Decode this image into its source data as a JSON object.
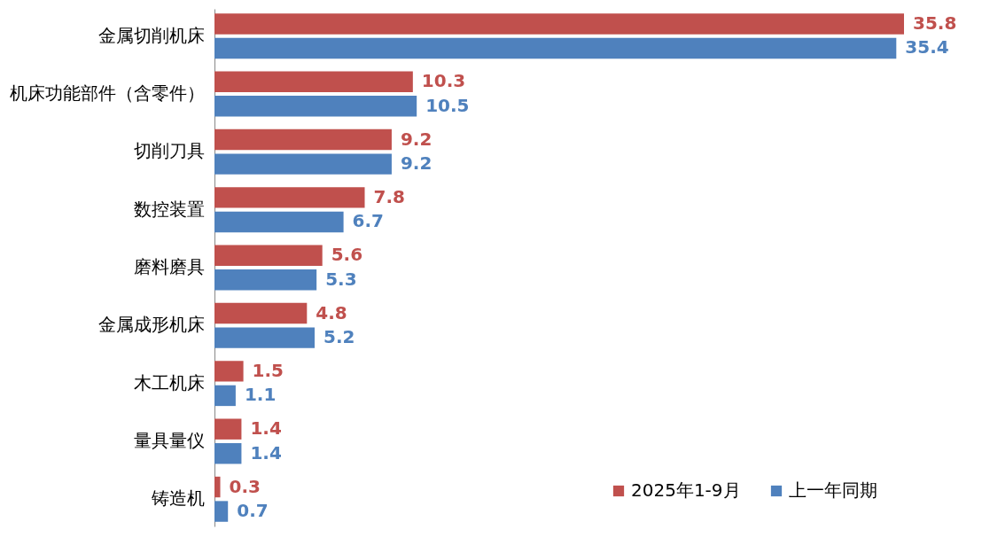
{
  "chart_data": {
    "type": "bar",
    "orientation": "horizontal",
    "categories": [
      "金属切削机床",
      "机床功能部件（含零件）",
      "切削刀具",
      "数控装置",
      "磨料磨具",
      "金属成形机床",
      "木工机床",
      "量具量仪",
      "铸造机"
    ],
    "series": [
      {
        "name": "2025年1-9月",
        "color": "#c0504d",
        "values": [
          35.8,
          10.3,
          9.2,
          7.8,
          5.6,
          4.8,
          1.5,
          1.4,
          0.3
        ]
      },
      {
        "name": "上一年同期",
        "color": "#4f81bd",
        "values": [
          35.4,
          10.5,
          9.2,
          6.7,
          5.3,
          5.2,
          1.1,
          1.4,
          0.7
        ]
      }
    ],
    "data_labels": true,
    "legend": "bottom right"
  }
}
